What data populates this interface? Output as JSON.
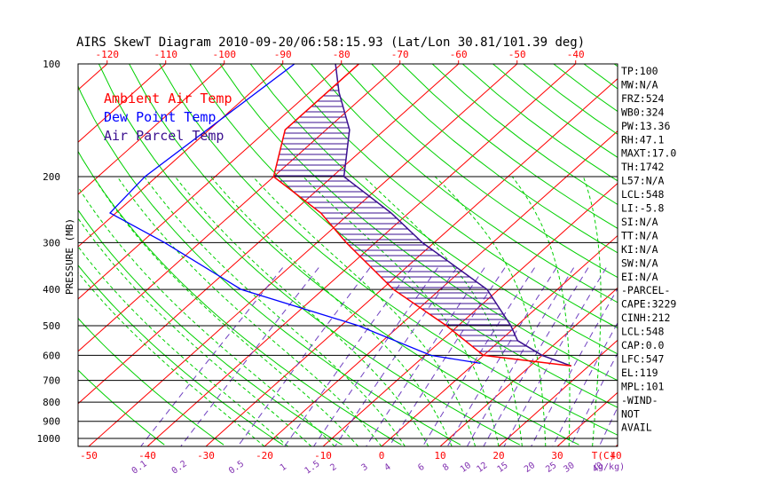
{
  "chart_data": {
    "type": "skewt",
    "title": "AIRS SkewT Diagram 2010-09-20/06:58:15.93 (Lat/Lon 30.81/101.39 deg)",
    "ylabel": "PRESSURE (MB)",
    "top_temp_ticks": [
      -120,
      -110,
      -100,
      -90,
      -80,
      -70,
      -60,
      -50,
      -40
    ],
    "bottom_temp_ticks": [
      -50,
      -40,
      -30,
      -20,
      -10,
      0,
      10,
      20,
      30,
      40
    ],
    "bottom_axis_label": "T(C)",
    "mixing_ratio_ticks": [
      "0.1",
      "0.2",
      "0.5",
      "1",
      "1.5",
      "2",
      "3",
      "4",
      "6",
      "8",
      "10",
      "12",
      "15",
      "20",
      "25",
      "30",
      "40"
    ],
    "mixing_ratio_label": "(g/kg)",
    "pressure_levels": [
      100,
      200,
      300,
      400,
      500,
      600,
      700,
      800,
      900,
      1000
    ],
    "legend": [
      {
        "label": "Ambient Air Temp",
        "color": "#ff0000"
      },
      {
        "label": "Dew Point Temp",
        "color": "#0000ff"
      },
      {
        "label": "Air Parcel Temp",
        "color": "#3a0f8f"
      }
    ],
    "stats": [
      "TP:100",
      "MW:N/A",
      "FRZ:524",
      "WB0:324",
      "PW:13.36",
      "RH:47.1",
      "MAXT:17.0",
      "TH:1742",
      "L57:N/A",
      "LCL:548",
      "LI:-5.8",
      "SI:N/A",
      "TT:N/A",
      "KI:N/A",
      "SW:N/A",
      "EI:N/A",
      "-PARCEL-",
      "CAPE:3229",
      "CINH:212",
      "LCL:548",
      "CAP:0.0",
      "LFC:547",
      "EL:119",
      "MPL:101",
      "-WIND-",
      "NOT",
      "AVAIL"
    ],
    "ambient_temp": [
      {
        "p": 100,
        "t": -77.0
      },
      {
        "p": 150,
        "t": -77.0
      },
      {
        "p": 200,
        "t": -70.0
      },
      {
        "p": 250,
        "t": -55.0
      },
      {
        "p": 300,
        "t": -45.0
      },
      {
        "p": 400,
        "t": -28.0
      },
      {
        "p": 500,
        "t": -12.0
      },
      {
        "p": 600,
        "t": 0.0
      },
      {
        "p": 640,
        "t": 17.0
      }
    ],
    "dew_point": [
      {
        "p": 100,
        "t": -88.0
      },
      {
        "p": 200,
        "t": -92.0
      },
      {
        "p": 250,
        "t": -91.0
      },
      {
        "p": 300,
        "t": -76.0
      },
      {
        "p": 400,
        "t": -54.0
      },
      {
        "p": 500,
        "t": -27.0
      },
      {
        "p": 600,
        "t": -9.0
      },
      {
        "p": 630,
        "t": 1.0
      }
    ],
    "parcel_temp": [
      {
        "p": 100,
        "t": -81.0
      },
      {
        "p": 119,
        "t": -75.0
      },
      {
        "p": 150,
        "t": -66.0
      },
      {
        "p": 200,
        "t": -58.0
      },
      {
        "p": 250,
        "t": -43.0
      },
      {
        "p": 300,
        "t": -32.0
      },
      {
        "p": 400,
        "t": -12.0
      },
      {
        "p": 500,
        "t": -1.0
      },
      {
        "p": 548,
        "t": 3.0
      },
      {
        "p": 600,
        "t": 10.0
      },
      {
        "p": 640,
        "t": 17.0
      }
    ],
    "colors": {
      "isotherm": "#ff0000",
      "dry_adiabat": "#00d000",
      "moist_adiabat": "#00d000",
      "mixing_ratio": "#7040c0",
      "isobar": "#000000",
      "cape_hatch": "#3a0f8f"
    }
  }
}
